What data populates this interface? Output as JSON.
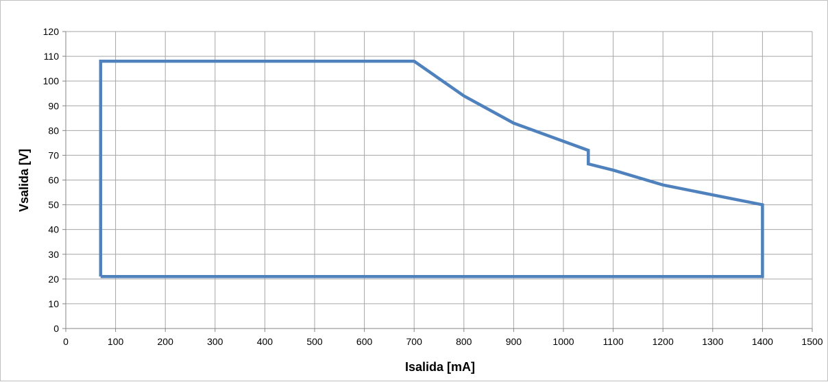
{
  "chart_data": {
    "type": "line",
    "title": "",
    "xlabel": "Isalida [mA]",
    "ylabel": "Vsalida [V]",
    "xlim": [
      0,
      1500
    ],
    "ylim": [
      0,
      120
    ],
    "x_ticks": [
      0,
      100,
      200,
      300,
      400,
      500,
      600,
      700,
      800,
      900,
      1000,
      1100,
      1200,
      1300,
      1400,
      1500
    ],
    "y_ticks": [
      0,
      10,
      20,
      30,
      40,
      50,
      60,
      70,
      80,
      90,
      100,
      110,
      120
    ],
    "grid": true,
    "legend": "none",
    "series": [
      {
        "color": "#4f81bd",
        "x": [
          70,
          70,
          700,
          800,
          900,
          1050,
          1050,
          1100,
          1200,
          1300,
          1400,
          1400,
          70
        ],
        "y": [
          21,
          108,
          108,
          94,
          83,
          72,
          66.5,
          64,
          58,
          54,
          50,
          21,
          21
        ]
      }
    ],
    "grid_color": "#a6a6a6",
    "axis_color": "#868686"
  }
}
